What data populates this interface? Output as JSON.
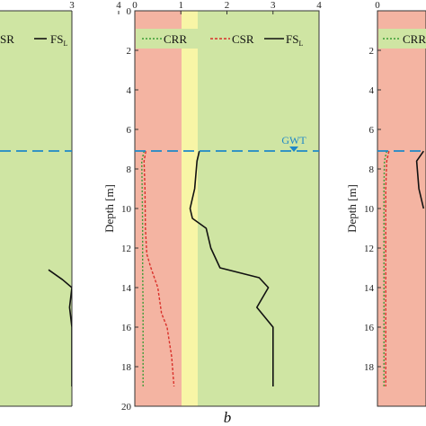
{
  "figure": {
    "panel_letter": "b",
    "y_axis_label": "Depth [m]",
    "legend": {
      "crr": "CRR",
      "csr": "CSR",
      "fs": "FS",
      "fs_sub": "L"
    },
    "gwt_label": "GWT",
    "colors": {
      "liquefiable_zone": "#f4b4a2",
      "marginal_zone": "#f8f5a6",
      "safe_zone": "#cfe5a3",
      "crr_line": "#3a9b35",
      "csr_line": "#d9302a",
      "fs_line": "#111111",
      "gwt_line": "#1e88c8"
    }
  },
  "chart_data": [
    {
      "type": "line",
      "panel": "left (partial)",
      "legend_visible": [
        "SR",
        "FS_L"
      ],
      "x_ticks": [
        "3",
        "4"
      ],
      "y_ticks": [
        "8",
        "10",
        "12",
        "14",
        "16",
        "18"
      ],
      "gwt_depth": 7,
      "series": [
        {
          "name": "FS_L",
          "points": [
            [
              2.5,
              13.1
            ],
            [
              2.8,
              13.6
            ],
            [
              3.0,
              14.0
            ],
            [
              2.95,
              15.0
            ],
            [
              3.0,
              16.0
            ],
            [
              3.0,
              17.0
            ],
            [
              3.0,
              19.0
            ]
          ]
        }
      ]
    },
    {
      "type": "line",
      "panel": "b",
      "xlim": [
        0,
        4
      ],
      "ylim": [
        20,
        0
      ],
      "x_ticks": [
        "0",
        "1",
        "2",
        "3",
        "4"
      ],
      "y_ticks": [
        "0",
        "2",
        "4",
        "6",
        "8",
        "10",
        "12",
        "14",
        "16",
        "18",
        "20"
      ],
      "ylabel": "Depth [m]",
      "gwt_depth": 7,
      "zones": {
        "liquefiable_x": [
          0,
          1
        ],
        "marginal_x": [
          1,
          1.3
        ],
        "safe_x": [
          1.3,
          4
        ]
      },
      "series": [
        {
          "name": "CRR",
          "points": [
            [
              0.2,
              7.1
            ],
            [
              0.15,
              7.6
            ],
            [
              0.16,
              9.0
            ],
            [
              0.17,
              11.0
            ],
            [
              0.17,
              13.0
            ],
            [
              0.18,
              15.0
            ],
            [
              0.18,
              17.0
            ],
            [
              0.18,
              19.0
            ]
          ]
        },
        {
          "name": "CSR",
          "points": [
            [
              0.24,
              7.1
            ],
            [
              0.2,
              7.6
            ],
            [
              0.22,
              9.0
            ],
            [
              0.23,
              11.0
            ],
            [
              0.26,
              12.3
            ],
            [
              0.35,
              13.0
            ],
            [
              0.5,
              14.0
            ],
            [
              0.58,
              15.3
            ],
            [
              0.7,
              16.0
            ],
            [
              0.8,
              17.5
            ],
            [
              0.85,
              19.0
            ]
          ]
        },
        {
          "name": "FS_L",
          "points": [
            [
              1.4,
              7.1
            ],
            [
              1.35,
              7.6
            ],
            [
              1.3,
              9.0
            ],
            [
              1.2,
              10.0
            ],
            [
              1.25,
              10.5
            ],
            [
              1.55,
              11.0
            ],
            [
              1.65,
              12.0
            ],
            [
              1.85,
              13.0
            ],
            [
              2.7,
              13.5
            ],
            [
              2.9,
              14.0
            ],
            [
              2.65,
              15.0
            ],
            [
              3.0,
              16.0
            ],
            [
              3.0,
              17.0
            ],
            [
              3.0,
              19.0
            ]
          ]
        }
      ]
    },
    {
      "type": "line",
      "panel": "right (partial)",
      "legend_visible": [
        "CRR"
      ],
      "x_ticks": [
        "0"
      ],
      "y_ticks": [
        "2",
        "4",
        "6",
        "8",
        "10",
        "12",
        "14",
        "16",
        "18"
      ],
      "ylabel": "Depth [m]",
      "gwt_depth": 7,
      "series": [
        {
          "name": "CRR",
          "points": [
            [
              0.2,
              7.1
            ],
            [
              0.15,
              7.6
            ],
            [
              0.14,
              9.0
            ],
            [
              0.14,
              12.0
            ],
            [
              0.14,
              15.0
            ],
            [
              0.14,
              19.0
            ]
          ]
        },
        {
          "name": "CSR",
          "points": [
            [
              0.25,
              7.1
            ],
            [
              0.2,
              7.6
            ],
            [
              0.18,
              9.0
            ],
            [
              0.18,
              12.0
            ],
            [
              0.18,
              15.0
            ],
            [
              0.18,
              19.0
            ]
          ]
        },
        {
          "name": "FS_L",
          "points": [
            [
              1.0,
              7.1
            ],
            [
              0.85,
              7.6
            ],
            [
              0.9,
              9.0
            ],
            [
              1.0,
              10.0
            ]
          ]
        }
      ]
    }
  ]
}
